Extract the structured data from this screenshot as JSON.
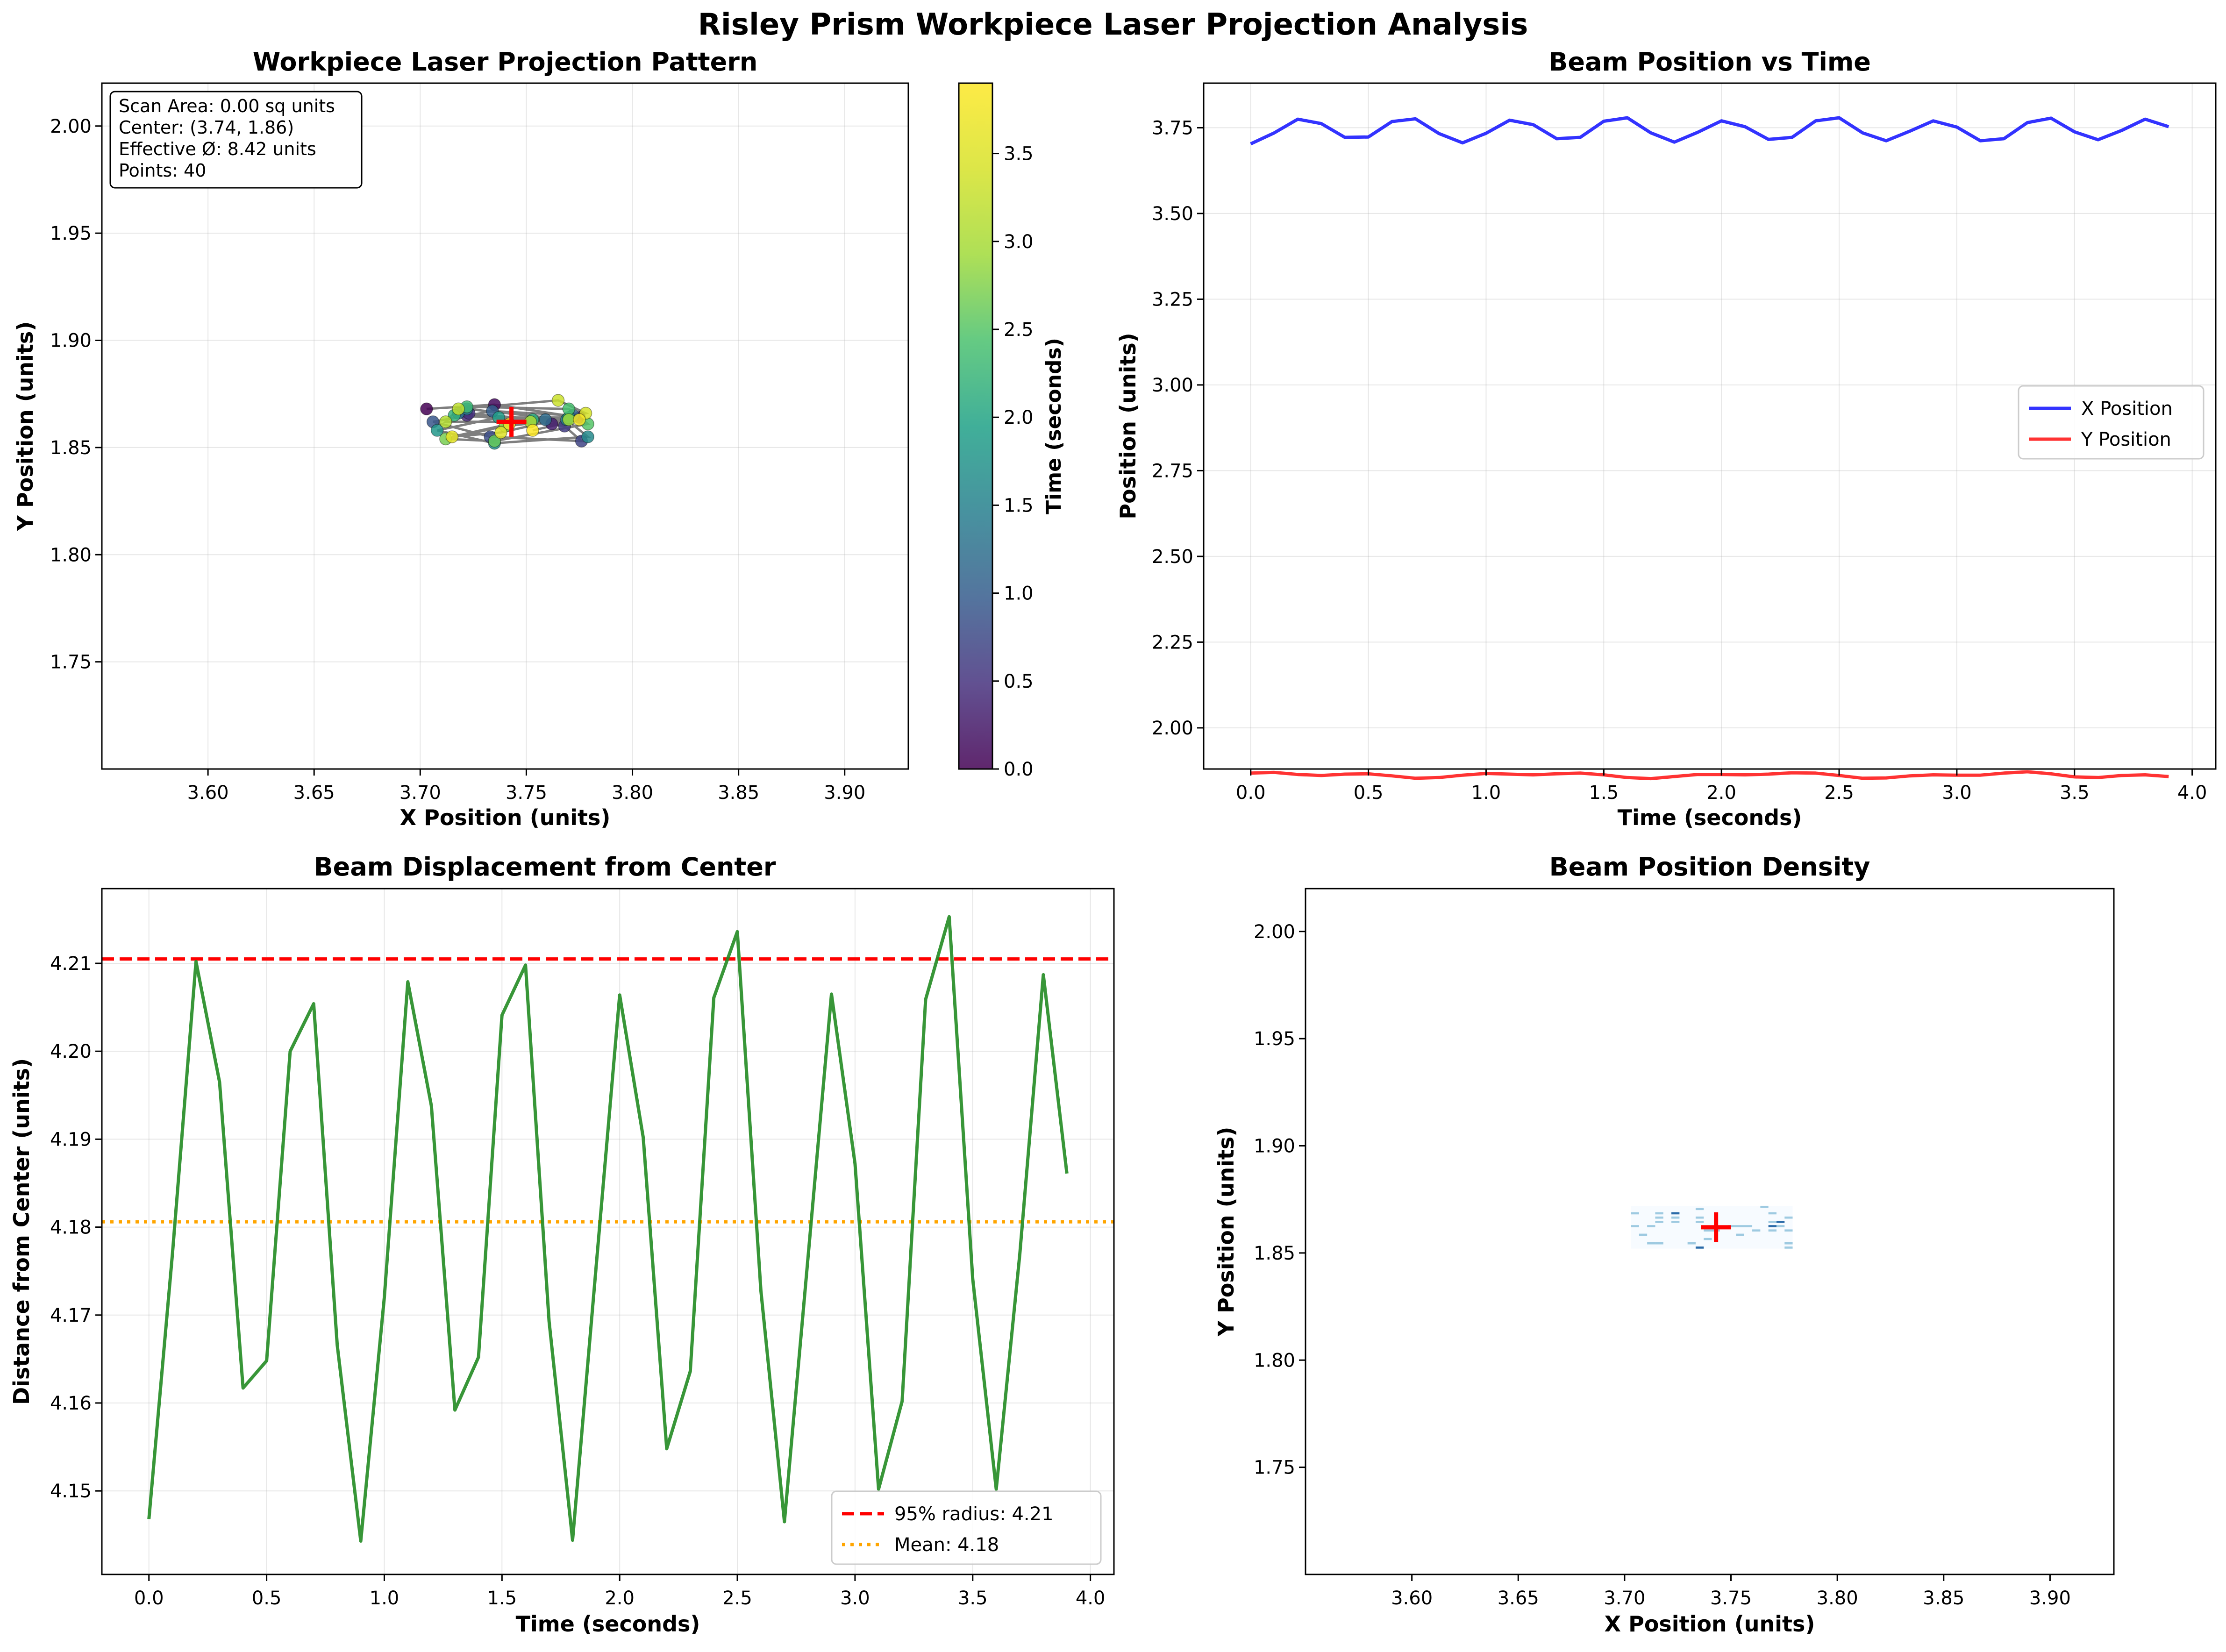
{
  "figure": {
    "suptitle": "Risley Prism Workpiece Laser Projection Analysis"
  },
  "chart_data": [
    {
      "id": "pattern",
      "type": "scatter",
      "title": "Workpiece Laser Projection Pattern",
      "xlabel": "X Position (units)",
      "ylabel": "Y Position (units)",
      "xlim": [
        3.55,
        3.93
      ],
      "ylim": [
        1.7,
        2.02
      ],
      "xticks": [
        "3.60",
        "3.65",
        "3.70",
        "3.75",
        "3.80",
        "3.85",
        "3.90"
      ],
      "yticks": [
        "1.75",
        "1.80",
        "1.85",
        "1.90",
        "1.95",
        "2.00"
      ],
      "grid": true,
      "colorbar": {
        "label": "Time (seconds)",
        "range": [
          0,
          3.9
        ],
        "ticks": [
          "0.0",
          "0.5",
          "1.0",
          "1.5",
          "2.0",
          "2.5",
          "3.0",
          "3.5"
        ],
        "colormap": "viridis"
      },
      "center_marker": {
        "x": 3.743,
        "y": 1.862,
        "color": "#ff0000"
      },
      "info_box": [
        "Scan Area: 0.00 sq units",
        "Center: (3.74, 1.86)",
        "Effective Ø: 8.42 units",
        "Points: 40"
      ]
    },
    {
      "id": "timeseries",
      "type": "line",
      "title": "Beam Position vs Time",
      "xlabel": "Time (seconds)",
      "ylabel": "Position (units)",
      "xlim": [
        -0.2,
        4.1
      ],
      "ylim": [
        1.88,
        3.88
      ],
      "xticks": [
        "0.0",
        "0.5",
        "1.0",
        "1.5",
        "2.0",
        "2.5",
        "3.0",
        "3.5",
        "4.0"
      ],
      "yticks": [
        "2.00",
        "2.25",
        "2.50",
        "2.75",
        "3.00",
        "3.25",
        "3.50",
        "3.75"
      ],
      "grid": true,
      "legend": {
        "position": "center-right"
      },
      "series": [
        {
          "name": "X Position",
          "color": "#0000ff",
          "values": [
            3.703,
            3.735,
            3.775,
            3.762,
            3.722,
            3.723,
            3.768,
            3.776,
            3.733,
            3.706,
            3.734,
            3.772,
            3.759,
            3.718,
            3.722,
            3.769,
            3.779,
            3.735,
            3.708,
            3.737,
            3.77,
            3.753,
            3.716,
            3.722,
            3.77,
            3.779,
            3.735,
            3.712,
            3.74,
            3.77,
            3.752,
            3.712,
            3.718,
            3.765,
            3.778,
            3.738,
            3.715,
            3.742,
            3.775,
            3.753
          ]
        },
        {
          "name": "Y Position",
          "color": "#ff0000",
          "values": [
            1.868,
            1.87,
            1.864,
            1.861,
            1.865,
            1.866,
            1.86,
            1.853,
            1.855,
            1.862,
            1.867,
            1.865,
            1.863,
            1.866,
            1.868,
            1.863,
            1.855,
            1.852,
            1.858,
            1.864,
            1.864,
            1.863,
            1.865,
            1.869,
            1.868,
            1.861,
            1.853,
            1.854,
            1.86,
            1.863,
            1.862,
            1.862,
            1.868,
            1.872,
            1.866,
            1.857,
            1.855,
            1.861,
            1.863,
            1.858
          ]
        }
      ]
    },
    {
      "id": "displacement",
      "type": "line",
      "title": "Beam Displacement from Center",
      "xlabel": "Time (seconds)",
      "ylabel": "Distance from Center (units)",
      "xlim": [
        -0.2,
        4.1
      ],
      "ylim": [
        4.1405,
        4.2185
      ],
      "xticks": [
        "0.0",
        "0.5",
        "1.0",
        "1.5",
        "2.0",
        "2.5",
        "3.0",
        "3.5",
        "4.0"
      ],
      "yticks": [
        "4.15",
        "4.16",
        "4.17",
        "4.18",
        "4.19",
        "4.20",
        "4.21"
      ],
      "grid": true,
      "legend": {
        "position": "bottom-right"
      },
      "series": [
        {
          "name": "",
          "color": "#228b22",
          "values": [
            4.1468,
            4.177,
            4.2102,
            4.1965,
            4.1617,
            4.1648,
            4.2,
            4.2054,
            4.1666,
            4.1443,
            4.172,
            4.2079,
            4.1938,
            4.1592,
            4.1652,
            4.2041,
            4.2098,
            4.1693,
            4.1444,
            4.1755,
            4.2064,
            4.1902,
            4.1548,
            4.1636,
            4.2061,
            4.2136,
            4.1728,
            4.1465,
            4.1765,
            4.2065,
            4.1872,
            4.1502,
            4.1602,
            4.2059,
            4.2153,
            4.1741,
            4.1502,
            4.1769,
            4.2087,
            4.1861
          ]
        }
      ],
      "hlines": [
        {
          "label": "95% radius: 4.21",
          "value": 4.2105,
          "color": "#ff0000",
          "style": "dashed"
        },
        {
          "label": "Mean: 4.18",
          "value": 4.1806,
          "color": "#ffa500",
          "style": "dotted"
        }
      ]
    },
    {
      "id": "density",
      "type": "heatmap",
      "title": "Beam Position Density",
      "xlabel": "X Position (units)",
      "ylabel": "Y Position (units)",
      "xlim": [
        3.55,
        3.93
      ],
      "ylim": [
        1.7,
        2.02
      ],
      "xticks": [
        "3.60",
        "3.65",
        "3.70",
        "3.75",
        "3.80",
        "3.85",
        "3.90"
      ],
      "yticks": [
        "1.75",
        "1.80",
        "1.85",
        "1.90",
        "1.95",
        "2.00"
      ],
      "grid": false,
      "colormap": "Blues",
      "center_marker": {
        "x": 3.743,
        "y": 1.862,
        "color": "#ff0000"
      }
    }
  ]
}
